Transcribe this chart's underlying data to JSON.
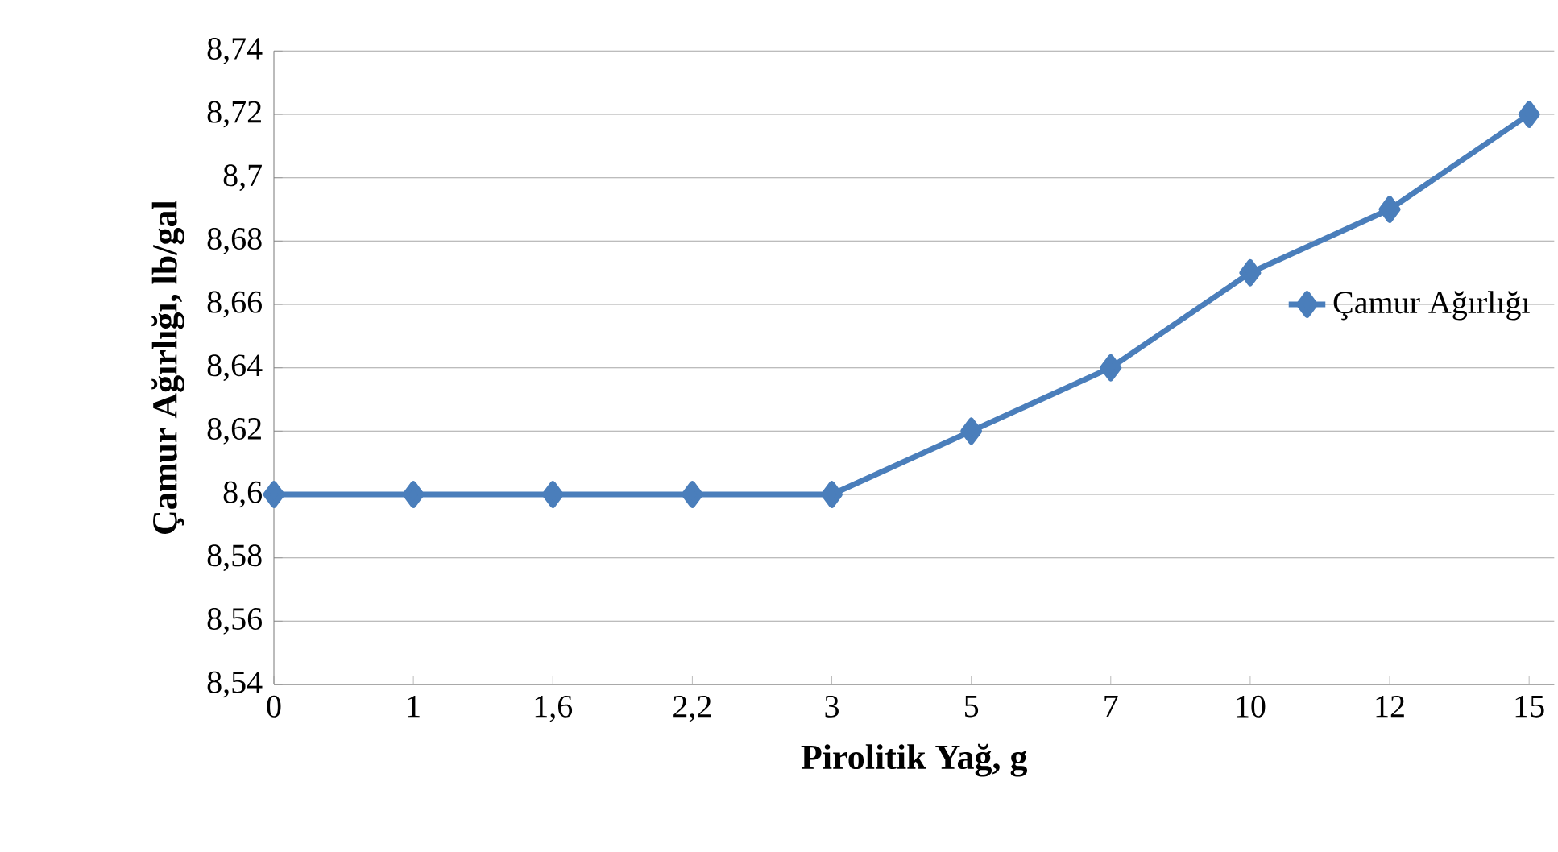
{
  "chart_data": {
    "type": "line",
    "xlabel": "Pirolitik Yağ, g",
    "ylabel": "Çamur Ağırlığı, lb/gal",
    "categories": [
      "0",
      "1",
      "1,6",
      "2,2",
      "3",
      "5",
      "7",
      "10",
      "12",
      "15"
    ],
    "series": [
      {
        "name": "Çamur Ağırlığı",
        "color": "#4a7ebb",
        "values": [
          8.6,
          8.6,
          8.6,
          8.6,
          8.6,
          8.62,
          8.64,
          8.67,
          8.69,
          8.72
        ]
      }
    ],
    "ylim": [
      8.54,
      8.74
    ],
    "yticks": [
      {
        "value": 8.54,
        "label": "8,54"
      },
      {
        "value": 8.56,
        "label": "8,56"
      },
      {
        "value": 8.58,
        "label": "8,58"
      },
      {
        "value": 8.6,
        "label": "8,6"
      },
      {
        "value": 8.62,
        "label": "8,62"
      },
      {
        "value": 8.64,
        "label": "8,64"
      },
      {
        "value": 8.66,
        "label": "8,66"
      },
      {
        "value": 8.68,
        "label": "8,68"
      },
      {
        "value": 8.7,
        "label": "8,7"
      },
      {
        "value": 8.72,
        "label": "8,72"
      },
      {
        "value": 8.74,
        "label": "8,74"
      }
    ],
    "grid": "y",
    "legend": "right",
    "marker": "diamond",
    "line_style": "solid"
  }
}
